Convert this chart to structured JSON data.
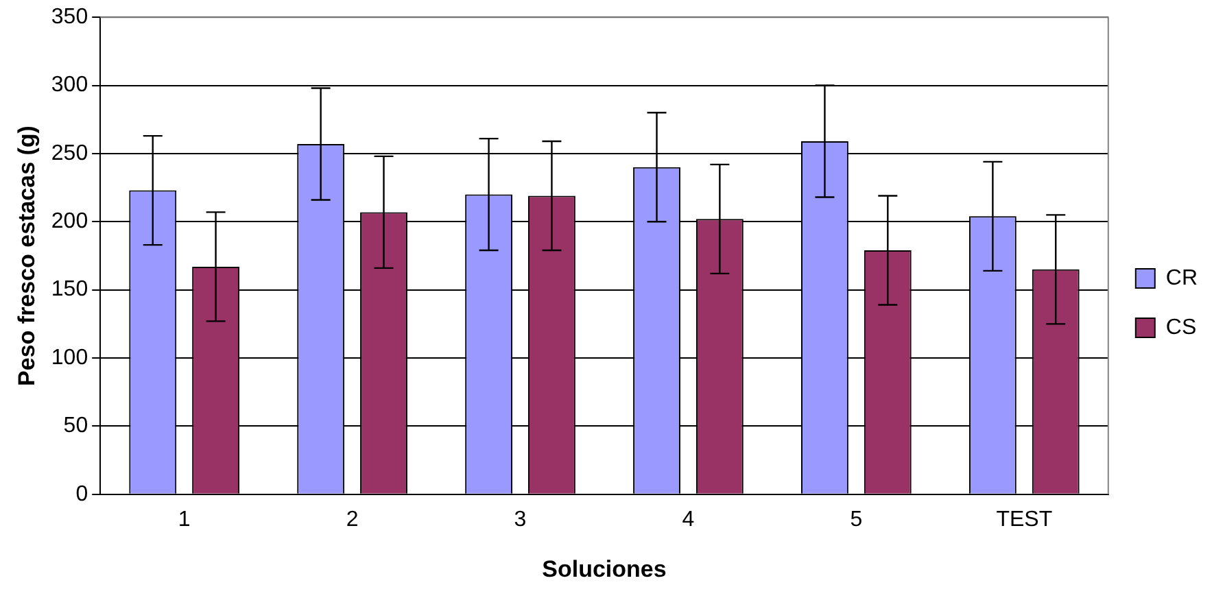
{
  "chart_data": {
    "type": "bar",
    "xlabel": "Soluciones",
    "ylabel": "Peso fresco estacas (g)",
    "categories": [
      "1",
      "2",
      "3",
      "4",
      "5",
      "TEST"
    ],
    "series": [
      {
        "name": "CR",
        "color": "#9999ff",
        "values": [
          223,
          257,
          220,
          240,
          259,
          204
        ],
        "errors": [
          40,
          41,
          41,
          40,
          41,
          40
        ]
      },
      {
        "name": "CS",
        "color": "#993366",
        "values": [
          167,
          207,
          219,
          202,
          179,
          165
        ],
        "errors": [
          40,
          41,
          40,
          40,
          40,
          40
        ]
      }
    ],
    "ylim": [
      0,
      350
    ],
    "yticks": [
      0,
      50,
      100,
      150,
      200,
      250,
      300,
      350
    ],
    "grid": "y",
    "legend": "right"
  }
}
